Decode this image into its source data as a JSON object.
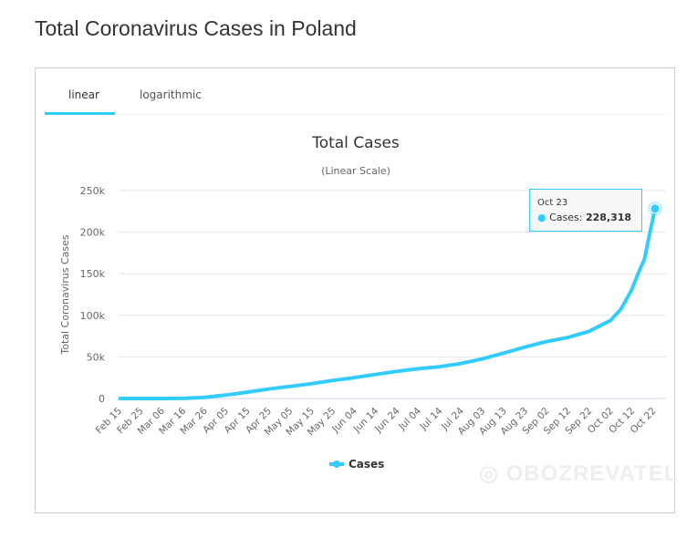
{
  "page_title": "Total Coronavirus Cases in Poland",
  "tabs": [
    {
      "label": "linear",
      "active": true
    },
    {
      "label": "logarithmic",
      "active": false
    }
  ],
  "accent": "#33ccff",
  "tooltip": {
    "date": "Oct 23",
    "series": "Cases",
    "value": "228,318"
  },
  "watermark": "OBOZREVATEL",
  "chart_data": {
    "type": "line",
    "title": "Total Cases",
    "subtitle": "(Linear Scale)",
    "ylabel": "Total Coronavirus Cases",
    "ylim": [
      0,
      250000
    ],
    "yticks": [
      0,
      50000,
      100000,
      150000,
      200000,
      250000
    ],
    "ytick_labels": [
      "0",
      "50k",
      "100k",
      "150k",
      "200k",
      "250k"
    ],
    "xtick_labels": [
      "Feb 15",
      "Feb 25",
      "Mar 06",
      "Mar 16",
      "Mar 26",
      "Apr 05",
      "Apr 15",
      "Apr 25",
      "May 05",
      "May 15",
      "May 25",
      "Jun 04",
      "Jun 14",
      "Jun 24",
      "Jul 04",
      "Jul 14",
      "Jul 24",
      "Aug 03",
      "Aug 13",
      "Aug 23",
      "Sep 02",
      "Sep 12",
      "Sep 22",
      "Oct 02",
      "Oct 12",
      "Oct 22"
    ],
    "grid": true,
    "legend": "bottom",
    "series": [
      {
        "name": "Cases",
        "color": "#33ccff",
        "points": [
          [
            "Feb 15",
            0
          ],
          [
            "Feb 25",
            0
          ],
          [
            "Mar 06",
            1
          ],
          [
            "Mar 16",
            150
          ],
          [
            "Mar 26",
            1221
          ],
          [
            "Apr 05",
            4102
          ],
          [
            "Apr 15",
            7582
          ],
          [
            "Apr 25",
            11273
          ],
          [
            "May 05",
            14431
          ],
          [
            "May 15",
            17615
          ],
          [
            "May 25",
            21631
          ],
          [
            "Jun 04",
            25048
          ],
          [
            "Jun 14",
            28826
          ],
          [
            "Jun 24",
            32527
          ],
          [
            "Jul 04",
            35719
          ],
          [
            "Jul 14",
            38190
          ],
          [
            "Jul 24",
            42038
          ],
          [
            "Aug 03",
            47469
          ],
          [
            "Aug 13",
            54487
          ],
          [
            "Aug 23",
            61762
          ],
          [
            "Sep 02",
            68354
          ],
          [
            "Sep 12",
            73298
          ],
          [
            "Sep 22",
            80699
          ],
          [
            "Oct 02",
            93481
          ],
          [
            "Oct 07",
            107319
          ],
          [
            "Oct 12",
            130210
          ],
          [
            "Oct 15",
            149903
          ],
          [
            "Oct 18",
            167230
          ],
          [
            "Oct 20",
            192539
          ],
          [
            "Oct 23",
            228318
          ]
        ]
      }
    ]
  }
}
